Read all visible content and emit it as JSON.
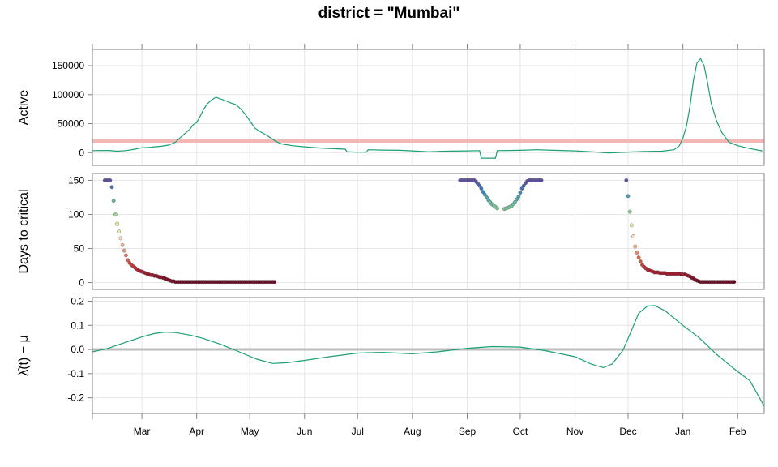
{
  "title": "district = \"Mumbai\"",
  "colors": {
    "line": "#1b9e77",
    "threshold": "#f4b8b4",
    "zero_line": "#bdbdbd",
    "grid": "#e6e6e6",
    "frame": "#808080",
    "point_scale": [
      "#67001f",
      "#b2182b",
      "#d6604d",
      "#f4a582",
      "#fddbc7",
      "#e6f598",
      "#99d594",
      "#66c2a5",
      "#3288bd",
      "#5e4fa2"
    ]
  },
  "chart_data": {
    "type": "line",
    "x_axis": {
      "start": "2021-02-01",
      "end": "2022-02-16",
      "tick_labels": [
        {
          "label": "Mar",
          "date": "2021-03-01"
        },
        {
          "label": "Apr",
          "date": "2021-04-01"
        },
        {
          "label": "May",
          "date": "2021-05-01"
        },
        {
          "label": "Jun",
          "date": "2021-06-01"
        },
        {
          "label": "Jul",
          "date": "2021-07-01"
        },
        {
          "label": "Aug",
          "date": "2021-08-01"
        },
        {
          "label": "Sep",
          "date": "2021-09-01"
        },
        {
          "label": "Oct",
          "date": "2021-10-01"
        },
        {
          "label": "Nov",
          "date": "2021-11-01"
        },
        {
          "label": "Dec",
          "date": "2021-12-01"
        },
        {
          "label": "Jan",
          "date": "2022-01-01"
        },
        {
          "label": "Feb",
          "date": "2022-02-01"
        }
      ]
    },
    "panels": [
      {
        "id": "active",
        "type": "line",
        "ylabel": "Active",
        "ylim": [
          -22000,
          178000
        ],
        "yticks": [
          0,
          50000,
          100000,
          150000
        ],
        "ytick_labels": [
          "0",
          "50000",
          "100000",
          "150000"
        ],
        "threshold": 20000,
        "series": [
          {
            "points": [
              [
                "2021-02-01",
                3500
              ],
              [
                "2021-02-10",
                3800
              ],
              [
                "2021-02-15",
                2500
              ],
              [
                "2021-02-20",
                3500
              ],
              [
                "2021-02-25",
                6000
              ],
              [
                "2021-03-01",
                8500
              ],
              [
                "2021-03-05",
                9000
              ],
              [
                "2021-03-08",
                10000
              ],
              [
                "2021-03-12",
                11000
              ],
              [
                "2021-03-16",
                13000
              ],
              [
                "2021-03-20",
                18000
              ],
              [
                "2021-03-22",
                24000
              ],
              [
                "2021-03-25",
                32000
              ],
              [
                "2021-03-28",
                40000
              ],
              [
                "2021-03-30",
                48000
              ],
              [
                "2021-04-01",
                52000
              ],
              [
                "2021-04-03",
                63000
              ],
              [
                "2021-04-05",
                75000
              ],
              [
                "2021-04-07",
                84000
              ],
              [
                "2021-04-09",
                90000
              ],
              [
                "2021-04-11",
                94000
              ],
              [
                "2021-04-12",
                95500
              ],
              [
                "2021-04-14",
                93000
              ],
              [
                "2021-04-17",
                90000
              ],
              [
                "2021-04-20",
                86000
              ],
              [
                "2021-04-23",
                83000
              ],
              [
                "2021-04-25",
                78000
              ],
              [
                "2021-04-28",
                68000
              ],
              [
                "2021-05-01",
                55000
              ],
              [
                "2021-05-04",
                42000
              ],
              [
                "2021-05-07",
                36000
              ],
              [
                "2021-05-10",
                31000
              ],
              [
                "2021-05-13",
                25000
              ],
              [
                "2021-05-16",
                19000
              ],
              [
                "2021-05-19",
                15000
              ],
              [
                "2021-05-25",
                12000
              ],
              [
                "2021-06-01",
                10000
              ],
              [
                "2021-06-10",
                8000
              ],
              [
                "2021-06-20",
                6500
              ],
              [
                "2021-06-24",
                6000
              ],
              [
                "2021-06-25",
                1500
              ],
              [
                "2021-06-30",
                1000
              ],
              [
                "2021-07-06",
                1000
              ],
              [
                "2021-07-07",
                5000
              ],
              [
                "2021-07-15",
                4500
              ],
              [
                "2021-07-25",
                4000
              ],
              [
                "2021-08-01",
                3000
              ],
              [
                "2021-08-10",
                1500
              ],
              [
                "2021-08-20",
                2500
              ],
              [
                "2021-09-01",
                3000
              ],
              [
                "2021-09-08",
                3500
              ],
              [
                "2021-09-09",
                -9500
              ],
              [
                "2021-09-17",
                -9500
              ],
              [
                "2021-09-18",
                3500
              ],
              [
                "2021-10-01",
                4000
              ],
              [
                "2021-10-10",
                5000
              ],
              [
                "2021-10-20",
                4000
              ],
              [
                "2021-11-01",
                3000
              ],
              [
                "2021-11-10",
                1500
              ],
              [
                "2021-11-20",
                -500
              ],
              [
                "2021-12-01",
                1000
              ],
              [
                "2021-12-10",
                2000
              ],
              [
                "2021-12-20",
                2500
              ],
              [
                "2021-12-27",
                5000
              ],
              [
                "2021-12-30",
                12000
              ],
              [
                "2022-01-01",
                25000
              ],
              [
                "2022-01-03",
                45000
              ],
              [
                "2022-01-05",
                80000
              ],
              [
                "2022-01-07",
                125000
              ],
              [
                "2022-01-09",
                155000
              ],
              [
                "2022-01-11",
                162000
              ],
              [
                "2022-01-13",
                150000
              ],
              [
                "2022-01-15",
                120000
              ],
              [
                "2022-01-17",
                85000
              ],
              [
                "2022-01-20",
                55000
              ],
              [
                "2022-01-23",
                35000
              ],
              [
                "2022-01-27",
                18000
              ],
              [
                "2022-02-01",
                12000
              ],
              [
                "2022-02-08",
                7000
              ],
              [
                "2022-02-15",
                3000
              ]
            ]
          }
        ]
      },
      {
        "id": "days",
        "type": "scatter",
        "ylabel": "Days to critical",
        "ylim": [
          -10,
          160
        ],
        "yticks": [
          0,
          50,
          100,
          150
        ],
        "ytick_labels": [
          "0",
          "50",
          "100",
          "150"
        ],
        "color_domain": [
          0,
          150
        ],
        "segments": [
          {
            "start": "2021-02-08",
            "values": [
              150,
              150,
              150,
              150,
              140,
              120,
              100,
              86,
              75,
              65,
              55,
              47,
              40,
              33,
              29,
              26,
              24,
              22,
              20,
              18,
              17,
              16,
              15,
              14,
              13,
              12,
              11,
              11,
              10,
              10,
              9,
              8,
              8,
              7,
              6,
              5,
              4,
              3,
              2,
              2,
              1
            ],
            "tail_end": "2021-05-15",
            "tail_value": 1
          },
          {
            "start": "2021-08-28",
            "values": [
              150,
              150,
              150,
              150,
              150,
              150,
              150,
              150,
              150,
              148,
              145,
              142,
              138,
              133,
              129,
              125,
              121,
              118,
              115,
              113,
              111,
              109
            ],
            "gap_after": 3
          },
          {
            "start": "2021-09-22",
            "values": [
              108,
              109,
              110,
              111,
              112,
              115,
              118,
              122,
              126,
              132,
              138,
              142,
              146,
              149,
              150,
              150,
              150,
              150,
              150,
              150,
              150,
              150
            ]
          },
          {
            "start": "2021-11-30",
            "values": [
              150,
              127,
              104,
              84,
              68,
              53,
              44,
              37,
              31,
              26,
              23,
              21,
              19,
              18,
              17,
              16,
              15,
              15,
              15,
              14,
              14,
              14,
              14,
              13,
              13,
              13,
              13,
              13,
              13,
              13,
              13,
              12,
              12,
              12,
              11,
              10,
              9,
              7,
              6,
              4,
              3,
              2,
              1
            ],
            "tail_end": "2022-01-30",
            "tail_value": 1
          }
        ]
      },
      {
        "id": "lambda",
        "type": "line",
        "ylabel": "λ̂(t) − μ",
        "ylim": [
          -0.265,
          0.215
        ],
        "yticks": [
          -0.2,
          -0.1,
          0.0,
          0.1,
          0.2
        ],
        "ytick_labels": [
          "-0.2",
          "-0.1",
          "0.0",
          "0.1",
          "0.2"
        ],
        "zero_line": 0,
        "series": [
          {
            "points": [
              [
                "2021-02-01",
                -0.01
              ],
              [
                "2021-02-10",
                0.005
              ],
              [
                "2021-02-20",
                0.03
              ],
              [
                "2021-03-01",
                0.052
              ],
              [
                "2021-03-08",
                0.066
              ],
              [
                "2021-03-14",
                0.072
              ],
              [
                "2021-03-20",
                0.07
              ],
              [
                "2021-03-28",
                0.06
              ],
              [
                "2021-04-05",
                0.045
              ],
              [
                "2021-04-15",
                0.02
              ],
              [
                "2021-04-25",
                -0.01
              ],
              [
                "2021-05-05",
                -0.04
              ],
              [
                "2021-05-14",
                -0.058
              ],
              [
                "2021-05-22",
                -0.055
              ],
              [
                "2021-06-01",
                -0.045
              ],
              [
                "2021-06-15",
                -0.03
              ],
              [
                "2021-07-01",
                -0.015
              ],
              [
                "2021-07-15",
                -0.012
              ],
              [
                "2021-08-01",
                -0.018
              ],
              [
                "2021-08-15",
                -0.01
              ],
              [
                "2021-09-01",
                0.005
              ],
              [
                "2021-09-15",
                0.012
              ],
              [
                "2021-10-01",
                0.01
              ],
              [
                "2021-10-15",
                -0.005
              ],
              [
                "2021-11-01",
                -0.03
              ],
              [
                "2021-11-10",
                -0.06
              ],
              [
                "2021-11-17",
                -0.075
              ],
              [
                "2021-11-22",
                -0.06
              ],
              [
                "2021-11-28",
                -0.005
              ],
              [
                "2021-12-03",
                0.08
              ],
              [
                "2021-12-07",
                0.15
              ],
              [
                "2021-12-12",
                0.18
              ],
              [
                "2021-12-16",
                0.182
              ],
              [
                "2021-12-22",
                0.16
              ],
              [
                "2022-01-01",
                0.1
              ],
              [
                "2022-01-10",
                0.05
              ],
              [
                "2022-01-20",
                -0.02
              ],
              [
                "2022-01-30",
                -0.08
              ],
              [
                "2022-02-08",
                -0.13
              ],
              [
                "2022-02-16",
                -0.235
              ]
            ]
          }
        ]
      }
    ]
  }
}
